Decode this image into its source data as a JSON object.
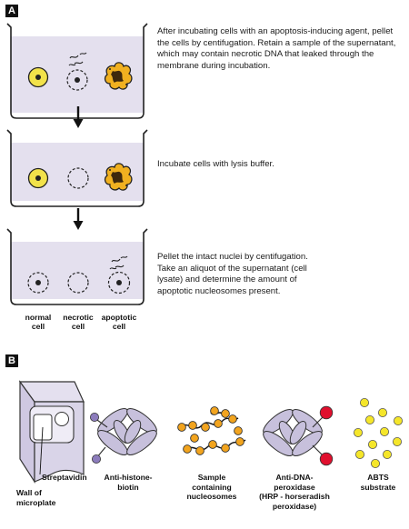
{
  "panel_a": {
    "tag": "A",
    "steps": [
      {
        "text": "After incubating cells with an apoptosis-inducing agent, pellet the cells by centifugation. Retain a sample of the supernatant, which may contain necrotic DNA that leaked through the membrane during incubation."
      },
      {
        "text": "Incubate cells with lysis buffer."
      },
      {
        "text": "Pellet the intact nuclei by centifugation. Take an aliquot of the supernatant (cell lysate) and determine the amount of apoptotic nucleosomes present."
      }
    ],
    "cell_labels": [
      {
        "line1": "normal",
        "line2": "cell"
      },
      {
        "line1": "necrotic",
        "line2": "cell"
      },
      {
        "line1": "apoptotic",
        "line2": "cell"
      }
    ]
  },
  "panel_b": {
    "tag": "B",
    "labels": {
      "streptavidin": "Streptavidin",
      "wall_line1": "Wall of",
      "wall_line2": "microplate",
      "antihistone_line1": "Anti-histone-",
      "antihistone_line2": "biotin",
      "sample_line1": "Sample",
      "sample_line2": "containing",
      "sample_line3": "nucleosomes",
      "antidna_line1": "Anti-DNA-",
      "antidna_line2": "peroxidase",
      "antidna_line3": "(HRP - horseradish",
      "antidna_line4": "peroxidase)",
      "abts_line1": "ABTS",
      "abts_line2": "substrate"
    }
  },
  "colors": {
    "liquid": "#e4e0ee",
    "nucleus_yellow": "#f2e24a",
    "apoptotic_orange": "#f0b020",
    "antibody_lavender": "#c7c0dc",
    "biotin_purple": "#8c7cbc",
    "hrp_red": "#e0102e",
    "abts_yellow": "#f5e62a",
    "nucleosome_orange": "#f2a41e",
    "plate_lavender": "#d9d4e8"
  }
}
